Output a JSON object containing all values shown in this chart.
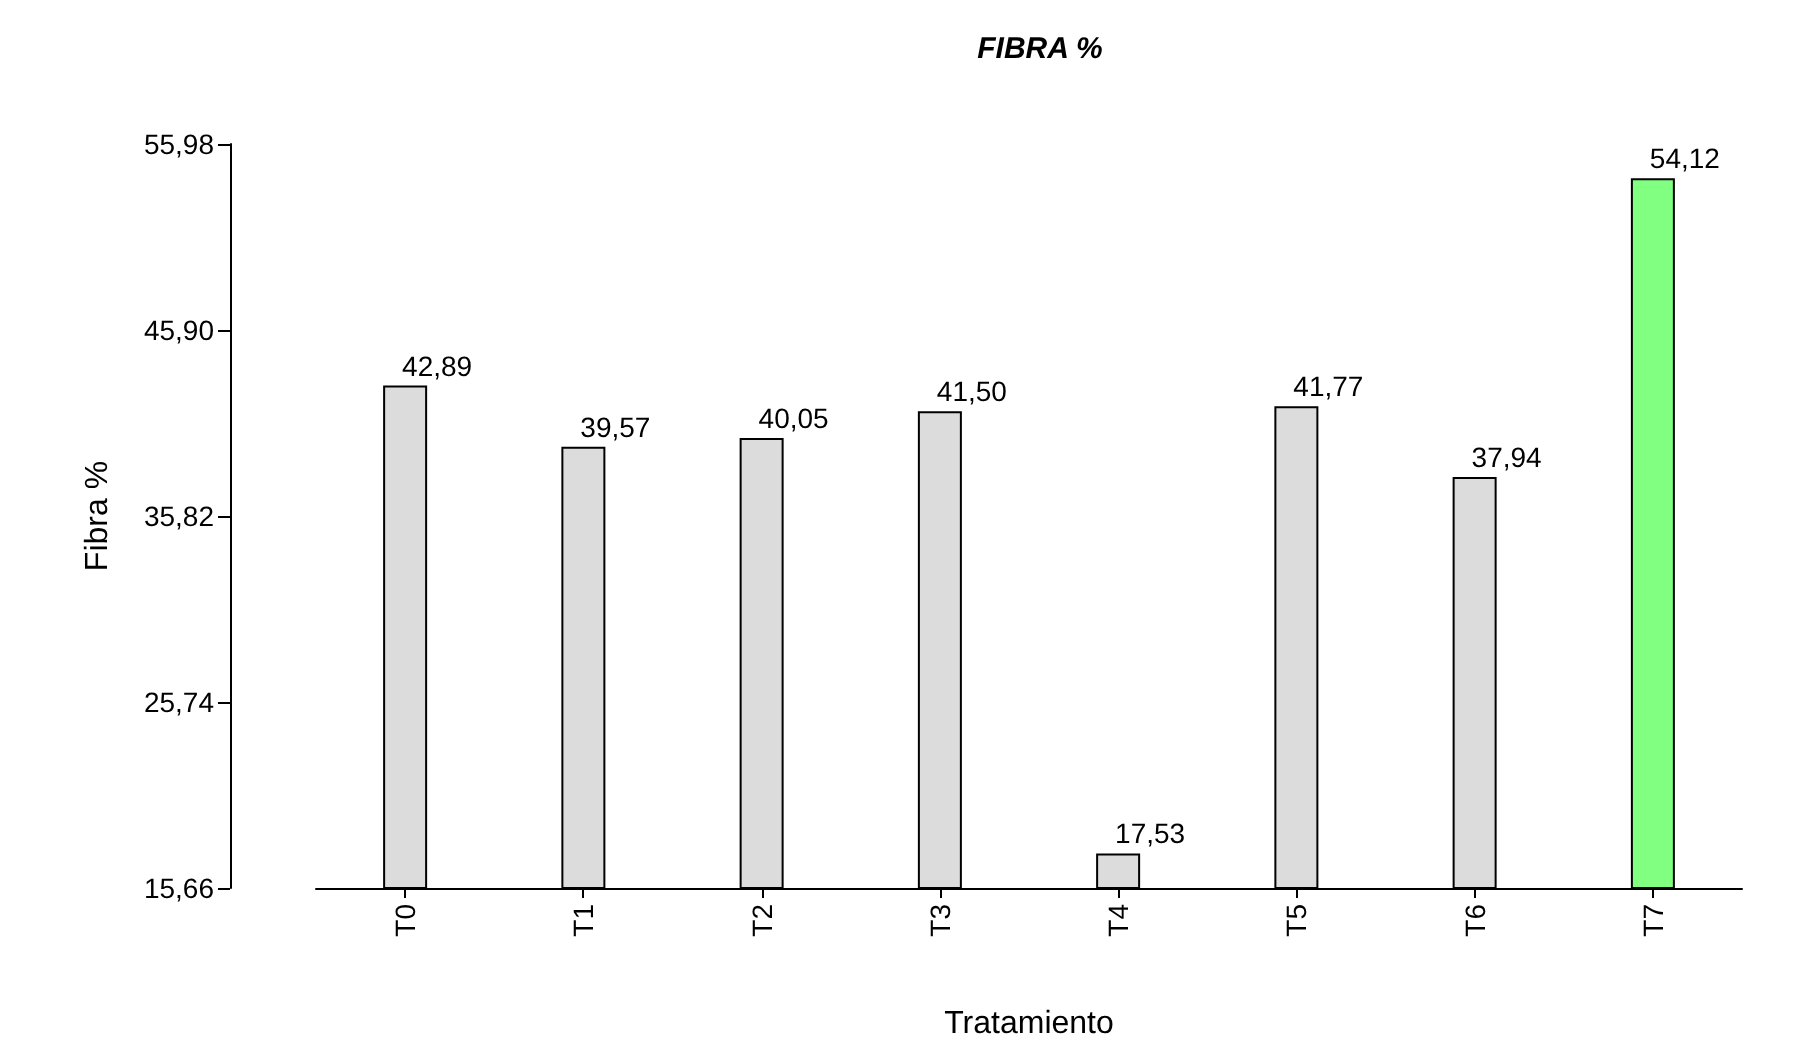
{
  "chart_data": {
    "type": "bar",
    "title": "FIBRA %",
    "xlabel": "Tratamiento",
    "ylabel": "Fibra %",
    "categories": [
      "T0",
      "T1",
      "T2",
      "T3",
      "T4",
      "T5",
      "T6",
      "T7"
    ],
    "values": [
      42.89,
      39.57,
      40.05,
      41.5,
      17.53,
      41.77,
      37.94,
      54.12
    ],
    "colors": [
      "#dcdcdc",
      "#dcdcdc",
      "#dcdcdc",
      "#dcdcdc",
      "#dcdcdc",
      "#dcdcdc",
      "#dcdcdc",
      "#80ff80"
    ],
    "value_labels": [
      "42,89",
      "39,57",
      "40,05",
      "41,50",
      "17,53",
      "41,77",
      "37,94",
      "54,12"
    ],
    "ylim": [
      15.66,
      55.98
    ],
    "yticks": [
      {
        "value": 15.66,
        "label": "15,66"
      },
      {
        "value": 25.74,
        "label": "25,74"
      },
      {
        "value": 35.82,
        "label": "35,82"
      },
      {
        "value": 45.9,
        "label": "45,90"
      },
      {
        "value": 55.98,
        "label": "55,98"
      }
    ],
    "grid": false
  }
}
